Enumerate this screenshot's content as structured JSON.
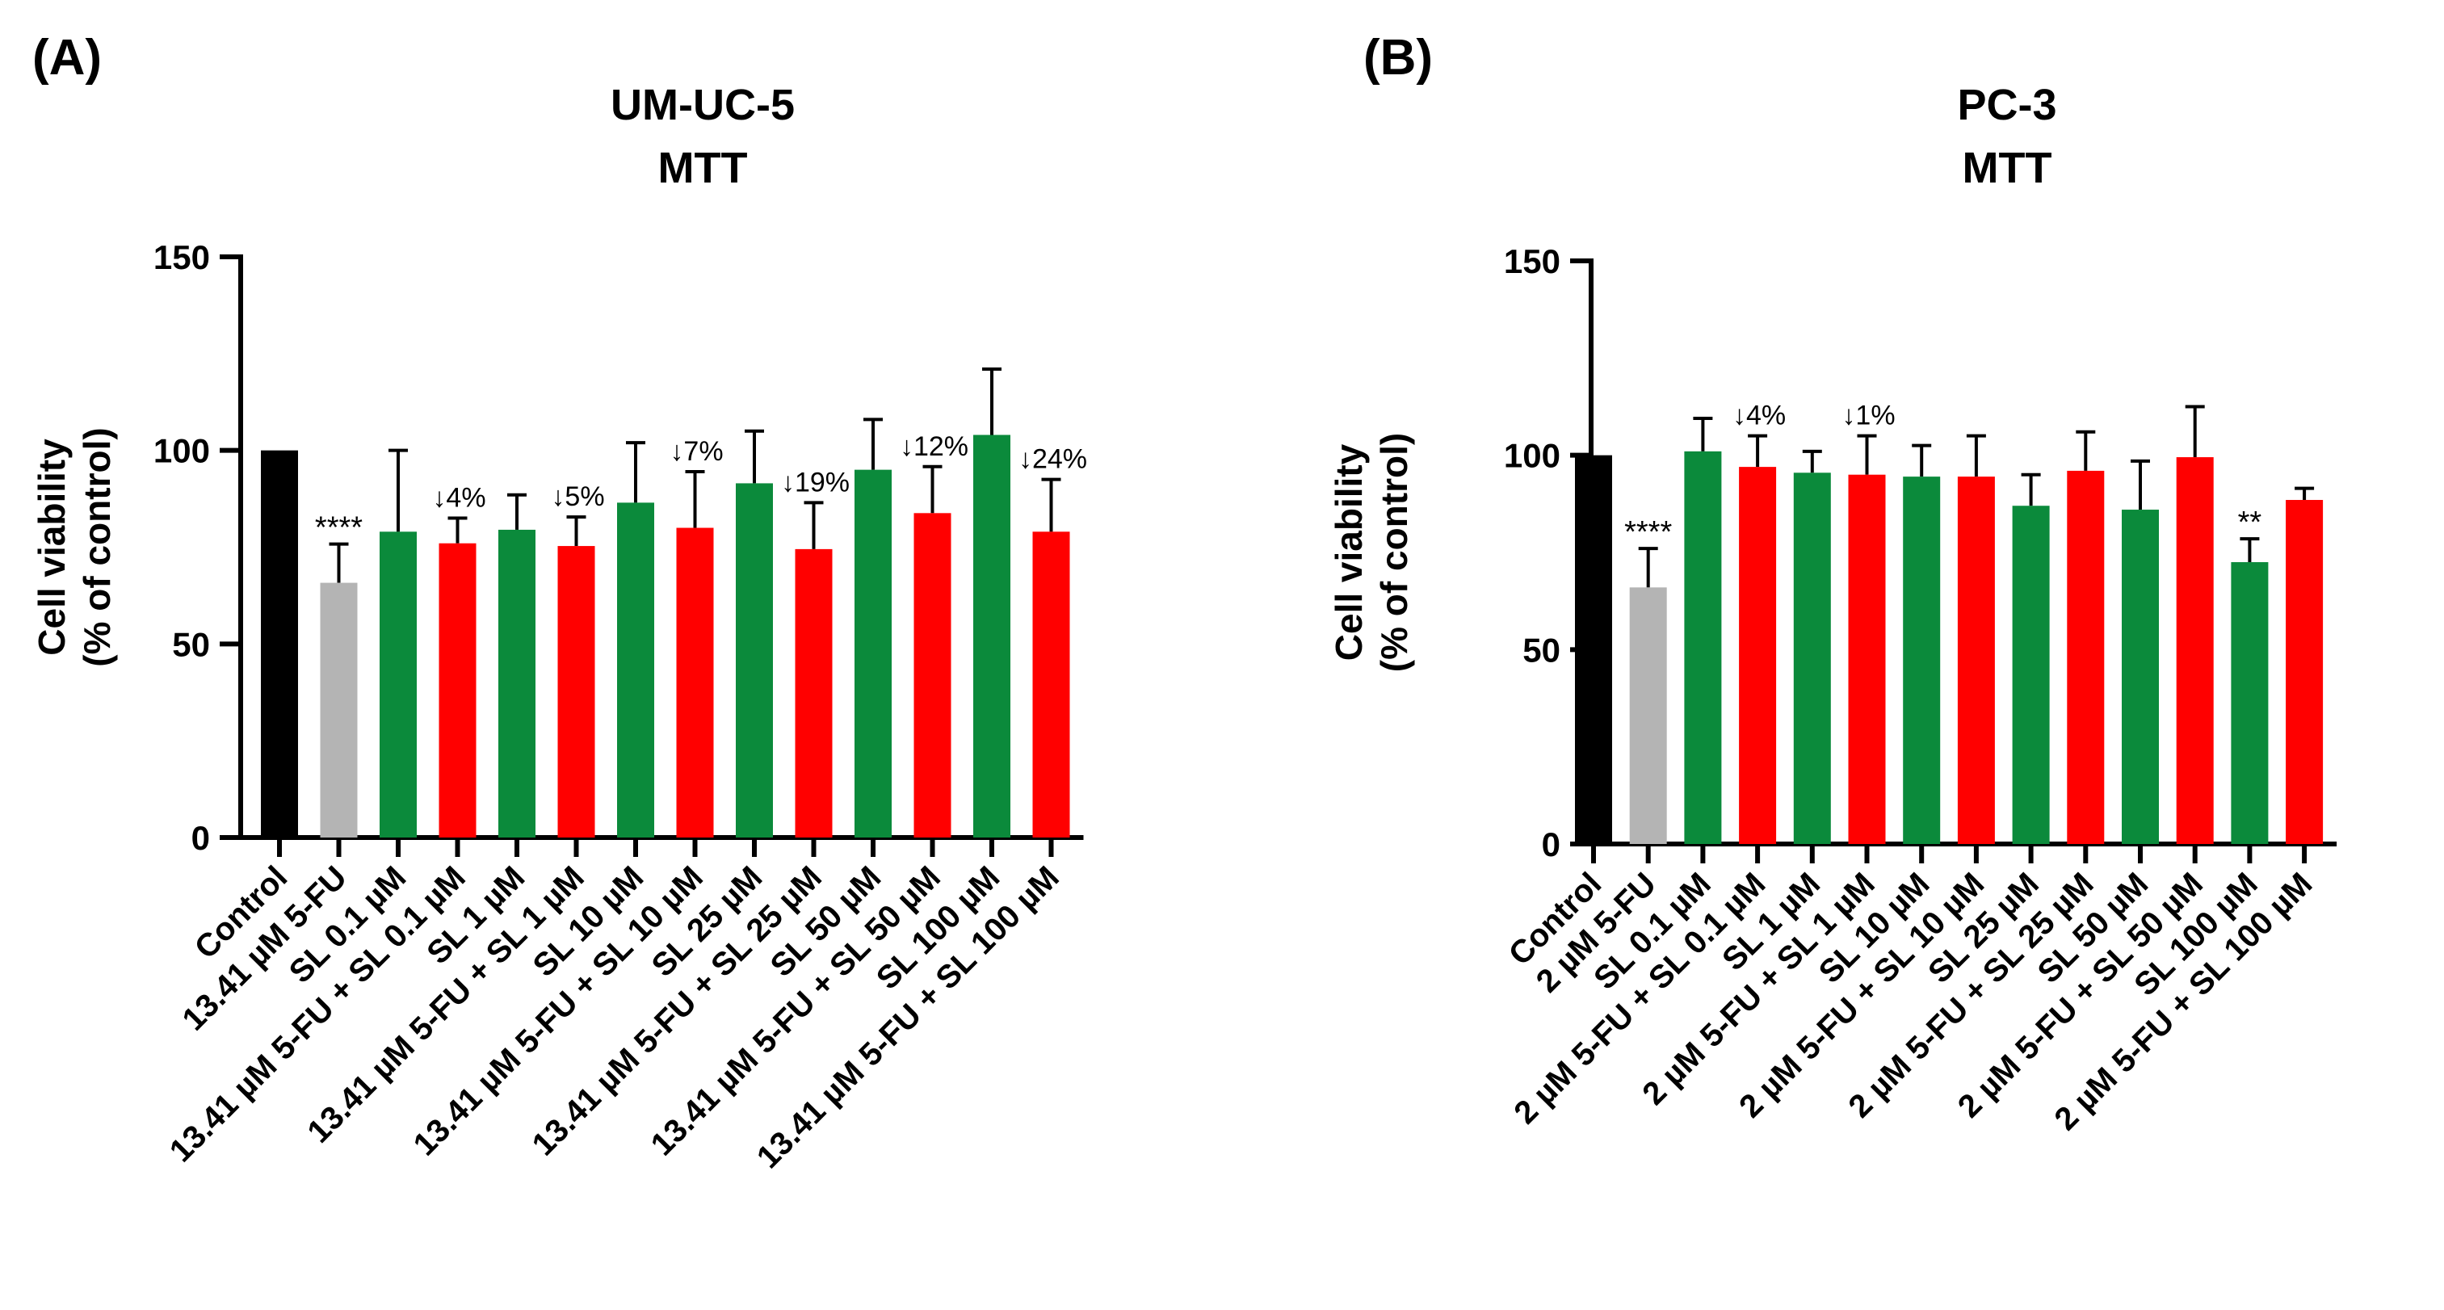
{
  "colors": {
    "control": "#000000",
    "fu": "#b4b4b4",
    "sl": "#0b8a3b",
    "combo": "#ff0000"
  },
  "chart_data": [
    {
      "type": "bar",
      "panel_label": "(A)",
      "title": "UM-UC-5",
      "subtitle": "MTT",
      "ylabel_line1": "Cell viability",
      "ylabel_line2": "(% of control)",
      "xlabel": "",
      "ylim": [
        0,
        150
      ],
      "yticks": [
        "0",
        "50",
        "100",
        "150"
      ],
      "categories": [
        "Control",
        "13.41 µM 5-FU",
        "SL 0.1 µM",
        "13.41 µM 5-FU + SL 0.1 µM",
        "SL 1 µM",
        "13.41 µM 5-FU + SL 1 µM",
        "SL 10 µM",
        "13.41 µM 5-FU + SL 10 µM",
        "SL 25 µM",
        "13.41 µM 5-FU + SL 25 µM",
        "SL 50 µM",
        "13.41 µM 5-FU + SL 50 µM",
        "SL 100 µM",
        "13.41 µM 5-FU + SL 100 µM"
      ],
      "values": [
        100,
        65.8,
        79,
        76,
        79.5,
        75.3,
        86.5,
        80,
        91.5,
        74.5,
        95,
        83.8,
        104,
        79
      ],
      "errors": [
        0,
        10,
        21,
        6.5,
        9,
        7.5,
        15.5,
        14.5,
        13.5,
        12,
        13,
        12,
        17,
        13.5
      ],
      "bar_colors": [
        "control",
        "fu",
        "sl",
        "combo",
        "sl",
        "combo",
        "sl",
        "combo",
        "sl",
        "combo",
        "sl",
        "combo",
        "sl",
        "combo"
      ],
      "annotations": [
        {
          "index": 1,
          "text": "****",
          "kind": "sig"
        },
        {
          "index": 3,
          "text": "↓4%",
          "kind": "pct"
        },
        {
          "index": 5,
          "text": "↓5%",
          "kind": "pct"
        },
        {
          "index": 7,
          "text": "↓7%",
          "kind": "pct"
        },
        {
          "index": 9,
          "text": "↓19%",
          "kind": "pct"
        },
        {
          "index": 11,
          "text": "↓12%",
          "kind": "pct"
        },
        {
          "index": 13,
          "text": "↓24%",
          "kind": "pct"
        }
      ]
    },
    {
      "type": "bar",
      "panel_label": "(B)",
      "title": "PC-3",
      "subtitle": "MTT",
      "ylabel_line1": "Cell viability",
      "ylabel_line2": "(% of control)",
      "xlabel": "",
      "ylim": [
        0,
        150
      ],
      "yticks": [
        "0",
        "50",
        "100",
        "150"
      ],
      "categories": [
        "Control",
        "2 µM 5-FU",
        "SL 0.1 µM",
        "2 µM 5-FU + SL 0.1 µM",
        "SL 1 µM",
        "2 µM 5-FU + SL 1 µM",
        "SL 10 µM",
        "2 µM 5-FU + SL 10 µM",
        "SL 25 µM",
        "2 µM 5-FU + SL 25 µM",
        "SL 50 µM",
        "2 µM 5-FU + SL 50 µM",
        "SL 100 µM",
        "2 µM 5-FU + SL 100 µM"
      ],
      "values": [
        100,
        66,
        101,
        97,
        95.5,
        95,
        94.5,
        94.5,
        87,
        96,
        86,
        99.5,
        72.5,
        88.5
      ],
      "errors": [
        0,
        10,
        8.5,
        8,
        5.5,
        10,
        8,
        10.5,
        8,
        10,
        12.5,
        13,
        6,
        3
      ],
      "bar_colors": [
        "control",
        "fu",
        "sl",
        "combo",
        "sl",
        "combo",
        "sl",
        "combo",
        "sl",
        "combo",
        "sl",
        "combo",
        "sl",
        "combo"
      ],
      "annotations": [
        {
          "index": 1,
          "text": "****",
          "kind": "sig"
        },
        {
          "index": 3,
          "text": "↓4%",
          "kind": "pct"
        },
        {
          "index": 5,
          "text": "↓1%",
          "kind": "pct"
        },
        {
          "index": 12,
          "text": "**",
          "kind": "sig"
        }
      ]
    }
  ]
}
